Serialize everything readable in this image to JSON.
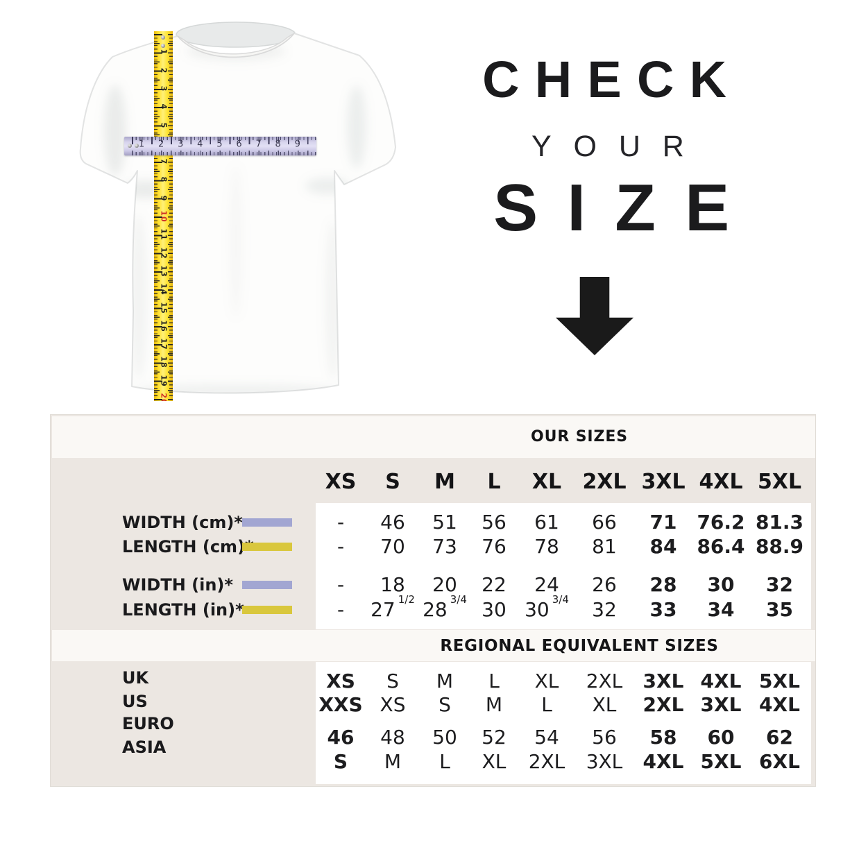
{
  "hero": {
    "line1": "CHECK",
    "line2": "YOUR",
    "line3": "SIZE",
    "arrow_icon": "down-arrow"
  },
  "rulers": {
    "vertical": {
      "icon": "yellow-measuring-tape",
      "numbers": [
        "1",
        "2",
        "3",
        "4",
        "5",
        "6",
        "7",
        "8",
        "9",
        "10",
        "11",
        "12",
        "13",
        "14",
        "15",
        "16",
        "17",
        "18",
        "19",
        "20"
      ],
      "red_numbers": [
        "10",
        "20"
      ],
      "color": "#ffdf26"
    },
    "horizontal": {
      "icon": "lavender-measuring-tape",
      "numbers": [
        "1",
        "2",
        "3",
        "4",
        "5",
        "6",
        "7",
        "8",
        "9"
      ],
      "color": "#cdc9e6"
    }
  },
  "table": {
    "our_sizes_title": "OUR SIZES",
    "size_headers": [
      "XS",
      "S",
      "M",
      "L",
      "XL",
      "2XL",
      "3XL",
      "4XL",
      "5XL"
    ],
    "bold_from_col": 6,
    "measure_rows": [
      {
        "label": "WIDTH (cm)*",
        "legend": "lavender",
        "values": [
          "-",
          "46",
          "51",
          "56",
          "61",
          "66",
          "71",
          "76.2",
          "81.3"
        ]
      },
      {
        "label": "LENGTH (cm)*",
        "legend": "yellow",
        "values": [
          "-",
          "70",
          "73",
          "76",
          "78",
          "81",
          "84",
          "86.4",
          "88.9"
        ]
      },
      {
        "label": "WIDTH (in)*",
        "legend": "lavender",
        "values": [
          "-",
          "18",
          "20",
          "22",
          "24",
          "26",
          "28",
          "30",
          "32"
        ]
      },
      {
        "label": "LENGTH (in)*",
        "legend": "yellow",
        "values": [
          "-",
          {
            "v": "27",
            "f": "1/2"
          },
          {
            "v": "28",
            "f": "3/4"
          },
          "30",
          {
            "v": "30",
            "f": "3/4"
          },
          "32",
          "33",
          "34",
          "35"
        ]
      }
    ],
    "regional_title": "REGIONAL EQUIVALENT SIZES",
    "regional_rows": [
      {
        "label": "UK",
        "values": [
          "XS",
          "S",
          "M",
          "L",
          "XL",
          "2XL",
          "3XL",
          "4XL",
          "5XL"
        ]
      },
      {
        "label": "US",
        "values": [
          "XXS",
          "XS",
          "S",
          "M",
          "L",
          "XL",
          "2XL",
          "3XL",
          "4XL"
        ]
      },
      {
        "label": "EURO",
        "values": [
          "46",
          "48",
          "50",
          "52",
          "54",
          "56",
          "58",
          "60",
          "62"
        ]
      },
      {
        "label": "ASIA",
        "values": [
          "S",
          "M",
          "L",
          "XL",
          "2XL",
          "3XL",
          "4XL",
          "5XL",
          "6XL"
        ]
      }
    ],
    "colors": {
      "lavender": "#a2a6d2",
      "yellow": "#d9c73d",
      "table_bg": "#ece7e2",
      "band_bg": "#faf8f5",
      "panel_bg": "#ffffff",
      "text": "#1d1d1f",
      "red": "#d03024"
    }
  }
}
